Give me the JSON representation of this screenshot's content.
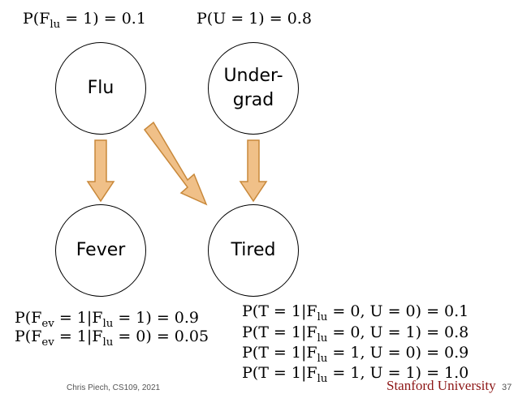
{
  "priors": {
    "flu": "P(F_lu = 1) = 0.1",
    "undergrad": "P(U = 1) = 0.8"
  },
  "nodes": {
    "flu": "Flu",
    "undergrad": "Under-\ngrad",
    "fever": "Fever",
    "tired": "Tired"
  },
  "fever_cpt": [
    "P(F_ev = 1|F_lu = 1) = 0.9",
    "P(F_ev = 1|F_lu = 0) = 0.05"
  ],
  "tired_cpt": [
    "P(T = 1|F_lu = 0, U = 0) = 0.1",
    "P(T = 1|F_lu = 0, U = 1) = 0.8",
    "P(T = 1|F_lu = 1, U = 0) = 0.9",
    "P(T = 1|F_lu = 1, U = 1) = 1.0"
  ],
  "footer": {
    "credit": "Chris Piech, CS109, 2021",
    "institution": "Stanford University",
    "page": "37"
  },
  "colors": {
    "arrow_fill": "#f0c088",
    "arrow_stroke": "#c8883a",
    "institution": "#8c1515"
  }
}
